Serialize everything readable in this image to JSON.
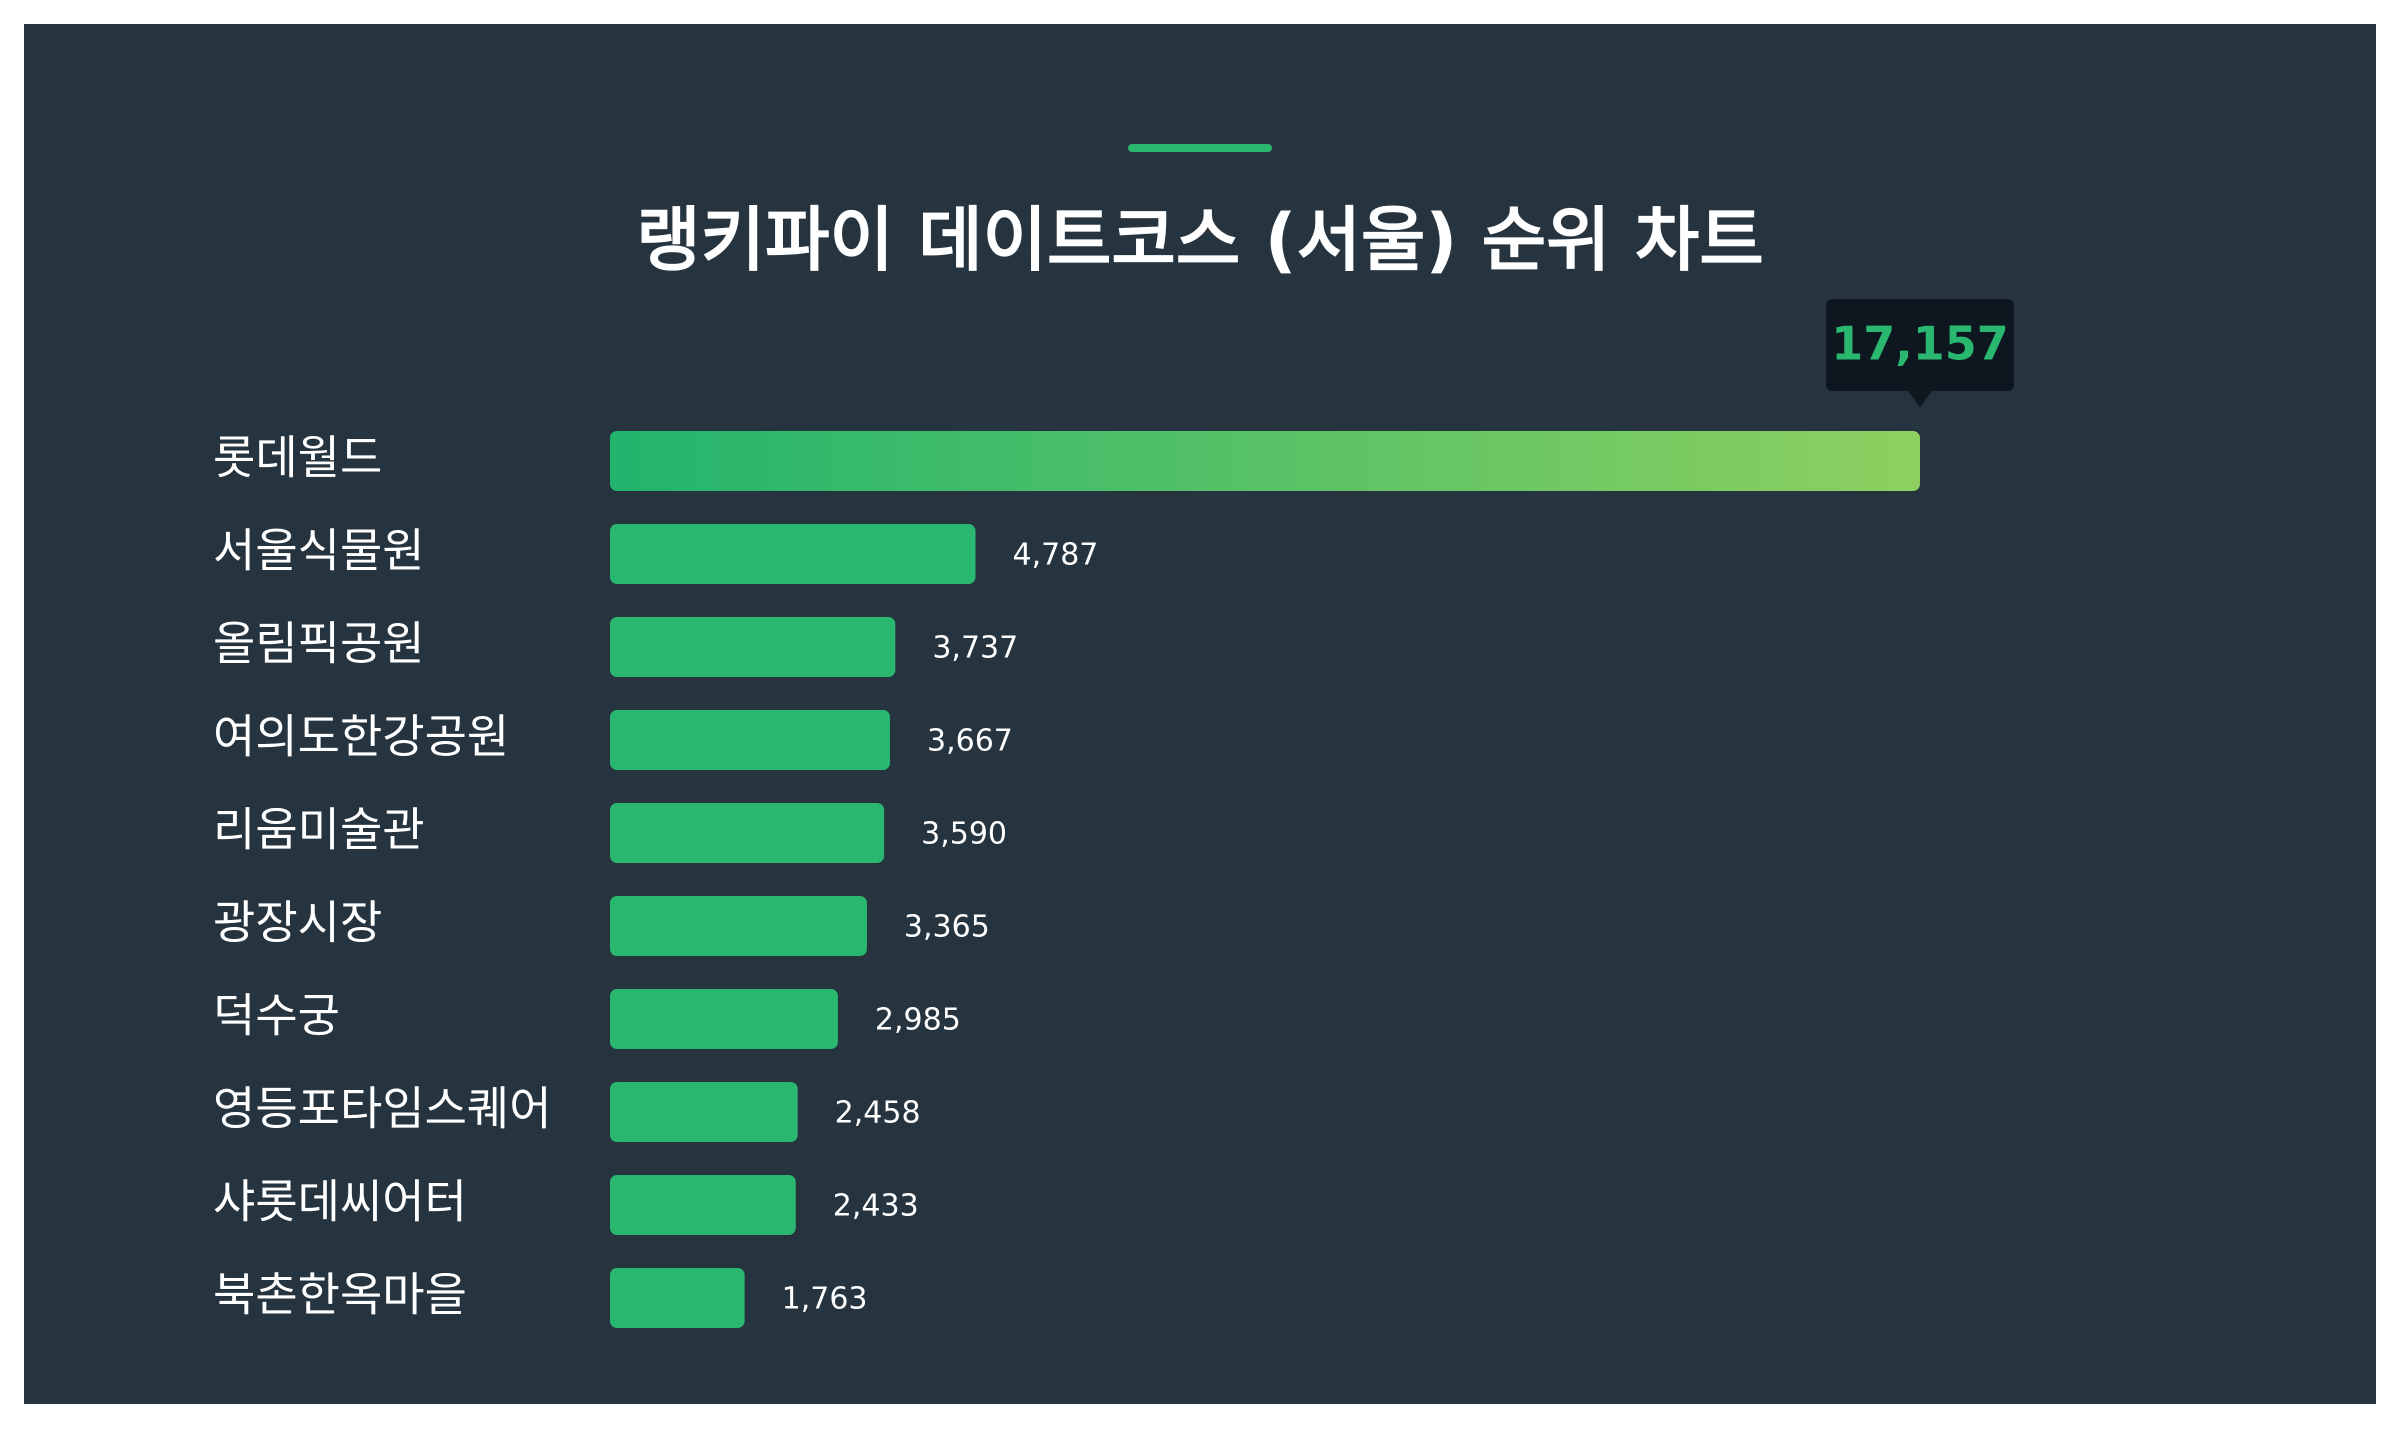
{
  "title": "랭키파이 데이트코스 (서울) 순위 차트",
  "colors": {
    "background": "#263440",
    "accent": "#2ab76f",
    "bar": "#2ab76f",
    "bar_gradient_start": "#22b46d",
    "bar_gradient_end": "#8ed060",
    "tooltip_bg": "#0e1720",
    "tooltip_text": "#2ab76f",
    "text": "#ffffff"
  },
  "chart_data": {
    "type": "bar",
    "orientation": "horizontal",
    "categories": [
      "롯데월드",
      "서울식물원",
      "올림픽공원",
      "여의도한강공원",
      "리움미술관",
      "광장시장",
      "덕수궁",
      "영등포타임스퀘어",
      "샤롯데씨어터",
      "북촌한옥마을"
    ],
    "values": [
      17157,
      4787,
      3737,
      3667,
      3590,
      3365,
      2985,
      2458,
      2433,
      1763
    ],
    "value_labels": [
      "17,157",
      "4,787",
      "3,737",
      "3,667",
      "3,590",
      "3,365",
      "2,985",
      "2,458",
      "2,433",
      "1,763"
    ],
    "highlight_index": 0,
    "xlim": [
      0,
      17157
    ],
    "grid": false,
    "legend": "none"
  }
}
